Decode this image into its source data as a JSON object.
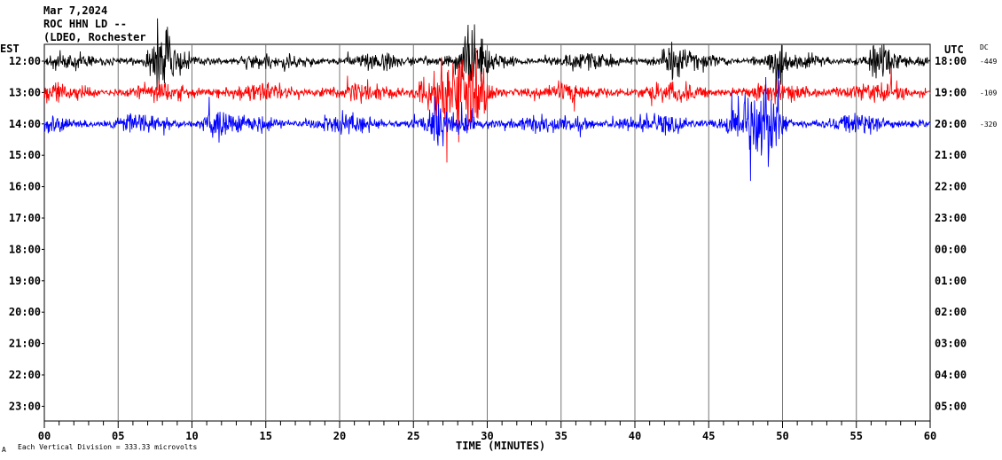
{
  "header": {
    "date": "Mar 7,2024",
    "station": "ROC HHN LD --",
    "network": "(LDEO, Rochester"
  },
  "footer": {
    "division_note": "Each Vertical Division =  333.33 microvolts",
    "corner_mark": "A"
  },
  "chart_data": {
    "type": "line",
    "title": "",
    "xlabel": "TIME (MINUTES)",
    "left_axis_label": "EST",
    "right_axis_label": "UTC",
    "dc_label": "DC",
    "xlim": [
      0,
      60
    ],
    "x_ticks": [
      "00",
      "05",
      "10",
      "15",
      "20",
      "25",
      "30",
      "35",
      "40",
      "45",
      "50",
      "55",
      "60"
    ],
    "left_hours": [
      "12:00",
      "13:00",
      "14:00",
      "15:00",
      "16:00",
      "17:00",
      "18:00",
      "19:00",
      "20:00",
      "21:00",
      "22:00",
      "23:00"
    ],
    "right_hours": [
      "18:00",
      "19:00",
      "20:00",
      "21:00",
      "22:00",
      "23:00",
      "00:00",
      "01:00",
      "02:00",
      "03:00",
      "04:00",
      "05:00"
    ],
    "dc_offsets": [
      "-449",
      "-109",
      "-320"
    ],
    "trace_colors": [
      "#000000",
      "#ff0000",
      "#0000ff"
    ],
    "vertical_gridlines": true,
    "series": [
      {
        "hour_row": "12:00",
        "color": "#000000",
        "bursts_at_minutes": [
          7,
          8,
          28,
          29,
          42,
          49,
          56
        ],
        "noise_level": "moderate"
      },
      {
        "hour_row": "13:00",
        "color": "#ff0000",
        "bursts_at_minutes": [
          25,
          26,
          27,
          28,
          29
        ],
        "noise_level": "moderate-high"
      },
      {
        "hour_row": "14:00",
        "color": "#0000ff",
        "bursts_at_minutes": [
          11,
          26,
          46,
          47,
          48,
          49
        ],
        "noise_level": "moderate"
      }
    ]
  }
}
